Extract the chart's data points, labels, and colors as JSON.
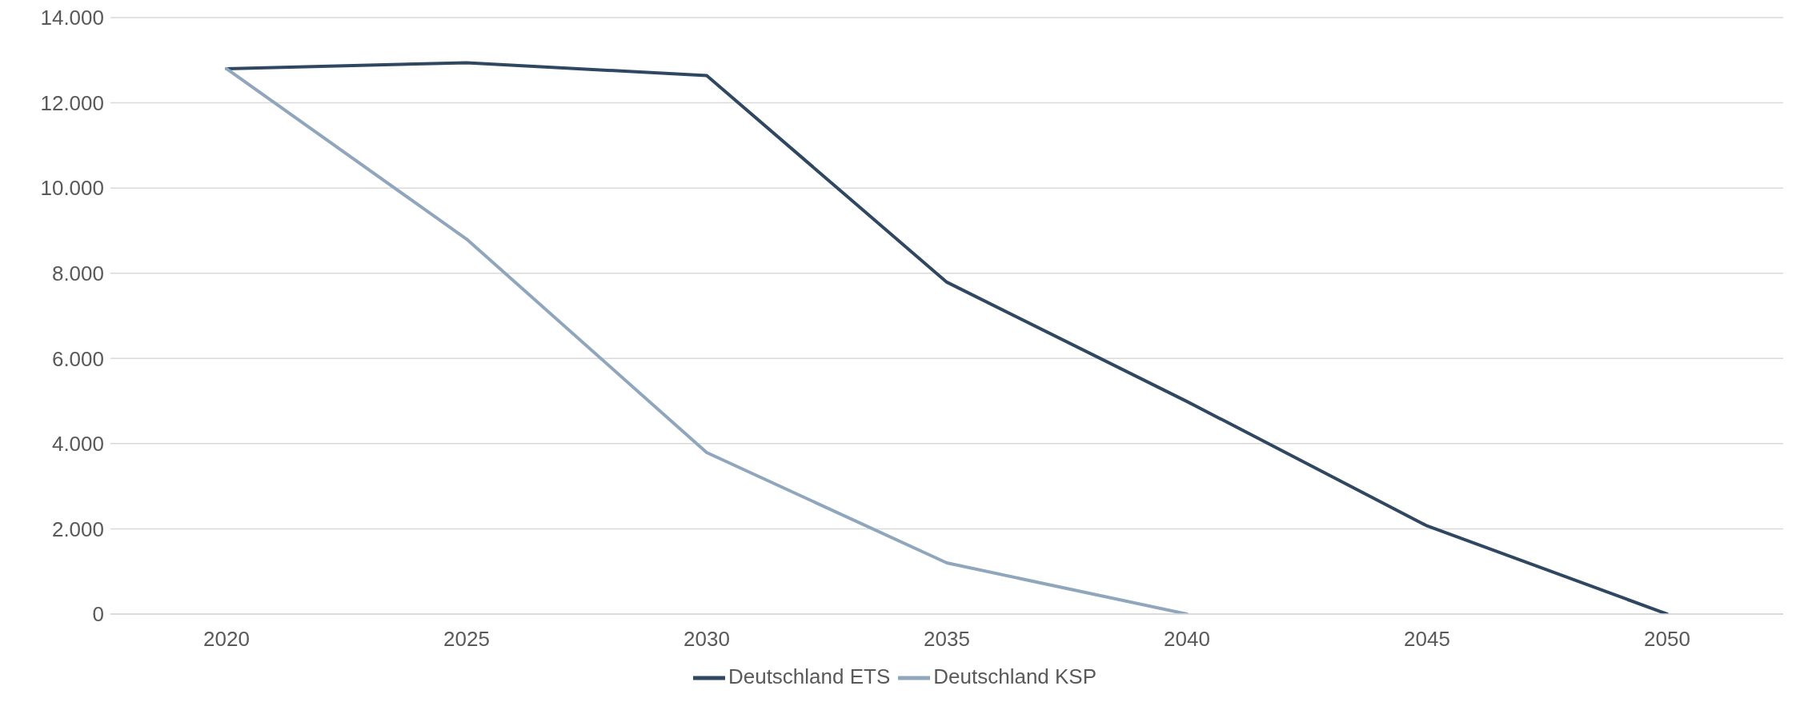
{
  "chart_data": {
    "type": "line",
    "categories": [
      "2020",
      "2025",
      "2030",
      "2035",
      "2040",
      "2045",
      "2050"
    ],
    "series": [
      {
        "name": "Deutschland ETS",
        "color": "#2f4760",
        "values": [
          12800,
          12940,
          12640,
          7790,
          4990,
          2070,
          0
        ]
      },
      {
        "name": "Deutschland KSP",
        "color": "#8fa6bd",
        "values": [
          12800,
          8800,
          3790,
          1200,
          0,
          null,
          null
        ]
      }
    ],
    "ylim": [
      0,
      14000
    ],
    "yticks": [
      {
        "value": 0,
        "label": "0"
      },
      {
        "value": 2000,
        "label": "2.000"
      },
      {
        "value": 4000,
        "label": "4.000"
      },
      {
        "value": 6000,
        "label": "6.000"
      },
      {
        "value": 8000,
        "label": "8.000"
      },
      {
        "value": 10000,
        "label": "10.000"
      },
      {
        "value": 12000,
        "label": "12.000"
      },
      {
        "value": 14000,
        "label": "14.000"
      }
    ],
    "grid": "y",
    "legend": "bottom",
    "marker": "none",
    "line_style": "solid"
  }
}
